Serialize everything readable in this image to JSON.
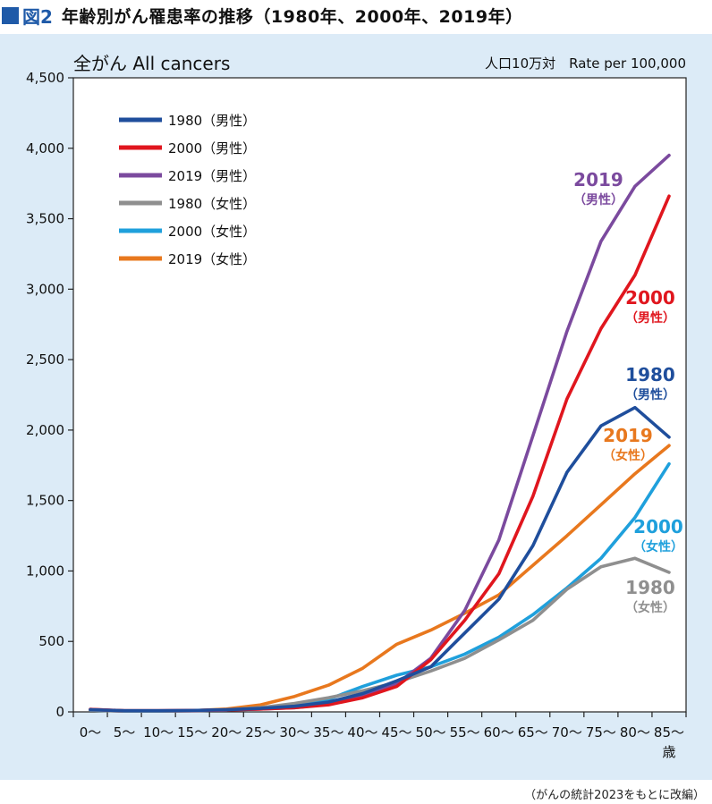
{
  "figure": {
    "number": "図2",
    "title": "年齢別がん罹患率の推移（1980年、2000年、2019年）",
    "source": "（がんの統計2023をもとに改編）"
  },
  "chart_data": {
    "type": "line",
    "title": "全がん All cancers",
    "unit_label": "人口10万対　Rate per 100,000",
    "x_unit_label": "歳",
    "categories": [
      "0〜",
      "5〜",
      "10〜",
      "15〜",
      "20〜",
      "25〜",
      "30〜",
      "35〜",
      "40〜",
      "45〜",
      "50〜",
      "55〜",
      "60〜",
      "65〜",
      "70〜",
      "75〜",
      "80〜",
      "85〜"
    ],
    "ylim": [
      0,
      4500
    ],
    "yticks": [
      0,
      500,
      1000,
      1500,
      2000,
      2500,
      3000,
      3500,
      4000,
      4500
    ],
    "ytick_labels": [
      "0",
      "500",
      "1,000",
      "1,500",
      "2,000",
      "2,500",
      "3,000",
      "3,500",
      "4,000",
      "4,500"
    ],
    "grid": false,
    "legend_position": "top-left",
    "series": [
      {
        "name": "1980（男性）",
        "color": "#1f4e9c",
        "values": [
          15,
          8,
          8,
          10,
          15,
          25,
          40,
          70,
          130,
          220,
          320,
          560,
          800,
          1180,
          1700,
          2030,
          2160,
          1950
        ],
        "annotation": {
          "year": "1980",
          "sex": "（男性）"
        }
      },
      {
        "name": "2000（男性）",
        "color": "#e0161e",
        "values": [
          18,
          8,
          8,
          10,
          14,
          20,
          30,
          50,
          100,
          180,
          370,
          650,
          980,
          1530,
          2220,
          2720,
          3100,
          3660
        ],
        "annotation": {
          "year": "2000",
          "sex": "（男性）"
        }
      },
      {
        "name": "2019（男性）",
        "color": "#7b4a9e",
        "values": [
          18,
          8,
          8,
          10,
          14,
          20,
          30,
          55,
          110,
          200,
          380,
          720,
          1220,
          1960,
          2700,
          3340,
          3730,
          3950
        ],
        "annotation": {
          "year": "2019",
          "sex": "（男性）"
        }
      },
      {
        "name": "1980（女性）",
        "color": "#8f8f8f",
        "values": [
          12,
          6,
          6,
          8,
          14,
          30,
          60,
          100,
          150,
          210,
          290,
          380,
          510,
          650,
          870,
          1030,
          1090,
          990
        ],
        "annotation": {
          "year": "1980",
          "sex": "（女性）"
        }
      },
      {
        "name": "2000（女性）",
        "color": "#1fa0dc",
        "values": [
          12,
          6,
          6,
          8,
          14,
          30,
          50,
          90,
          180,
          260,
          320,
          410,
          530,
          690,
          880,
          1090,
          1380,
          1760
        ],
        "annotation": {
          "year": "2000",
          "sex": "（女性）"
        }
      },
      {
        "name": "2019（女性）",
        "color": "#e8781e",
        "values": [
          14,
          6,
          6,
          8,
          20,
          50,
          110,
          190,
          310,
          480,
          580,
          700,
          830,
          1040,
          1250,
          1470,
          1690,
          1890
        ],
        "annotation": {
          "year": "2019",
          "sex": "（女性）"
        }
      }
    ]
  }
}
